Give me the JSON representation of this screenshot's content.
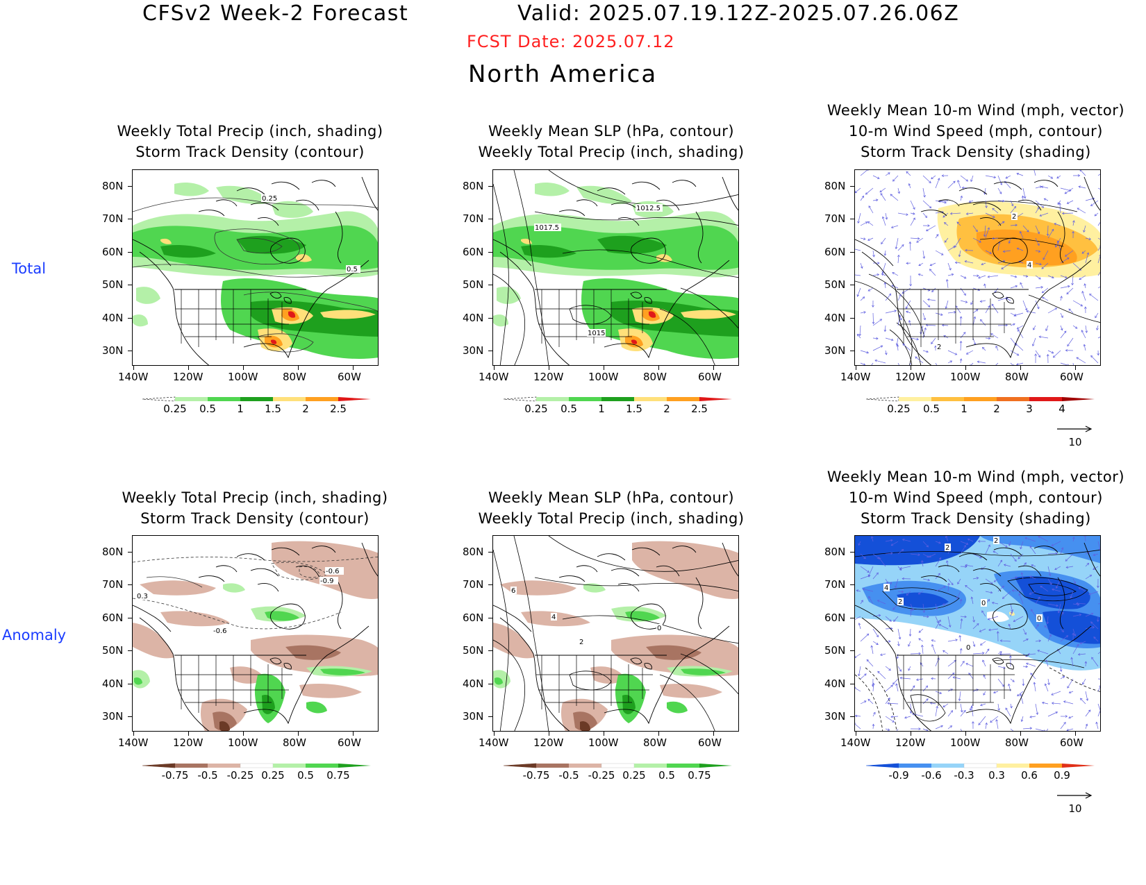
{
  "header": {
    "title": "CFSv2 Week-2 Forecast",
    "valid": "Valid: 2025.07.19.12Z-2025.07.26.06Z",
    "fcst_date": "FCST Date: 2025.07.12",
    "region": "North America"
  },
  "rows": {
    "total": "Total",
    "anomaly": "Anomaly"
  },
  "titles": {
    "precip_storm": [
      "Weekly Total Precip (inch, shading)",
      "Storm Track Density (contour)"
    ],
    "slp_precip": [
      "Weekly Mean SLP (hPa, contour)",
      "Weekly Total Precip (inch, shading)"
    ],
    "wind_storm": [
      "Weekly Mean 10-m Wind (mph, vector)",
      "10-m Wind Speed (mph, contour)",
      "Storm Track Density (shading)"
    ]
  },
  "axes": {
    "lat_ticks": [
      "80N",
      "70N",
      "60N",
      "50N",
      "40N",
      "30N"
    ],
    "lon_ticks": [
      "140W",
      "120W",
      "100W",
      "80W",
      "60W"
    ]
  },
  "colorbars": {
    "precip_total": {
      "labels": [
        "0.25",
        "0.5",
        "1",
        "1.5",
        "2",
        "2.5"
      ],
      "colors": [
        "#ffffff",
        "#b4f0a8",
        "#50d650",
        "#1ea01e",
        "#ffe07a",
        "#ffa020",
        "#e01818"
      ]
    },
    "storm_total": {
      "labels": [
        "0.25",
        "0.5",
        "1",
        "2",
        "3",
        "4"
      ],
      "colors": [
        "#ffffff",
        "#fff0a0",
        "#ffc040",
        "#ffa020",
        "#f07020",
        "#e01818",
        "#a00000"
      ]
    },
    "precip_anom": {
      "labels": [
        "-0.75",
        "-0.5",
        "-0.25",
        "0.25",
        "0.5",
        "0.75"
      ],
      "colors": [
        "#6b3a26",
        "#a87462",
        "#dcb4a6",
        "#ffffff",
        "#b4f0a8",
        "#50d650",
        "#1ea01e"
      ]
    },
    "storm_anom": {
      "labels": [
        "-0.9",
        "-0.6",
        "-0.3",
        "0.3",
        "0.6",
        "0.9"
      ],
      "colors": [
        "#1450d8",
        "#4690f0",
        "#96d4f8",
        "#ffffff",
        "#fff0a0",
        "#ffa020",
        "#e03018"
      ]
    }
  },
  "vector_ref": "10",
  "contour_labels": {
    "p1": [
      "0.25",
      "0.5"
    ],
    "p2": [
      "1012.5",
      "1017.5",
      "1015"
    ],
    "p3": [
      "2",
      "4",
      "2"
    ],
    "p4": [
      "-0.6",
      "-0.9",
      "0.3",
      "-0.6"
    ],
    "p5": [
      "6",
      "4",
      "2",
      "0"
    ],
    "p6": [
      "2",
      "2",
      "4",
      "2",
      "0",
      "0",
      "0"
    ]
  },
  "colors": {
    "fcst": "#ff2020",
    "row_label": "#1a3cff",
    "vectors": "#6060e0"
  }
}
